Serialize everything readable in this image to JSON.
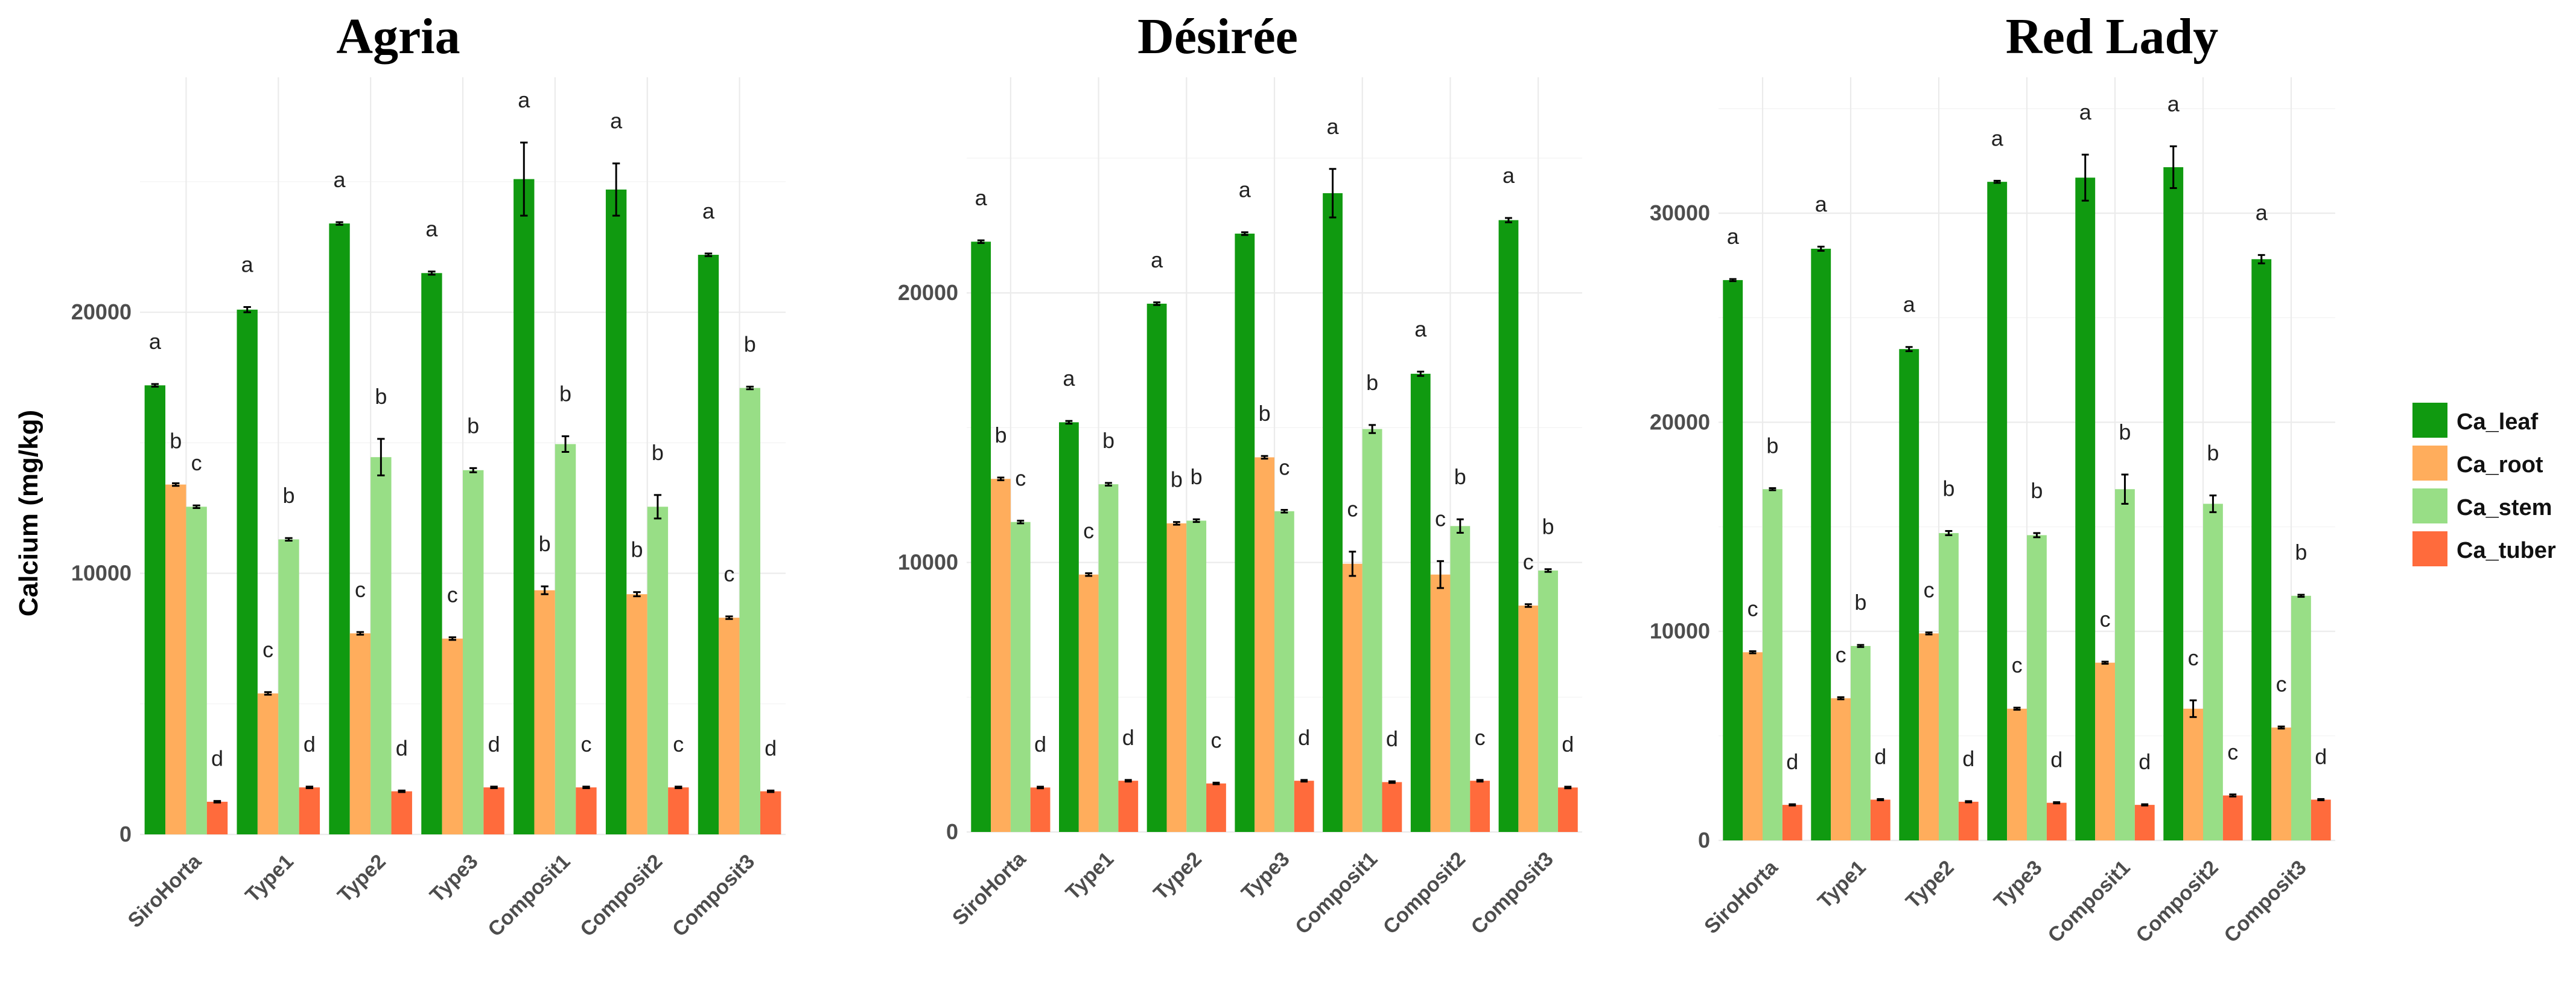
{
  "chart_data": [
    {
      "type": "bar",
      "title": "Agria",
      "ylabel": "Calcium (mg/kg)",
      "xlabel": "",
      "categories": [
        "SiroHorta",
        "Type1",
        "Type2",
        "Type3",
        "Composit1",
        "Composit2",
        "Composit3"
      ],
      "ylim": [
        0,
        29000
      ],
      "yticks": [
        0,
        10000,
        20000
      ],
      "series": [
        {
          "name": "Ca_leaf",
          "values": [
            17200,
            20100,
            23400,
            21500,
            25100,
            24700,
            22200
          ],
          "errors": [
            50,
            100,
            50,
            60,
            1400,
            1000,
            50
          ],
          "labels": [
            "a",
            "a",
            "a",
            "a",
            "a",
            "a",
            "a"
          ]
        },
        {
          "name": "Ca_root",
          "values": [
            13400,
            5400,
            7700,
            7500,
            9350,
            9200,
            8300
          ],
          "errors": [
            50,
            50,
            50,
            50,
            150,
            80,
            50
          ],
          "labels": [
            "b",
            "c",
            "c",
            "c",
            "b",
            "b",
            "c"
          ]
        },
        {
          "name": "Ca_stem",
          "values": [
            12550,
            11300,
            14450,
            13950,
            14950,
            12550,
            17100
          ],
          "errors": [
            50,
            50,
            700,
            80,
            300,
            450,
            50
          ],
          "labels": [
            "c",
            "b",
            "b",
            "b",
            "b",
            "b",
            "b"
          ]
        },
        {
          "name": "Ca_tuber",
          "values": [
            1250,
            1800,
            1650,
            1800,
            1800,
            1800,
            1650
          ],
          "errors": [
            30,
            30,
            30,
            30,
            30,
            30,
            30
          ],
          "labels": [
            "d",
            "d",
            "d",
            "d",
            "c",
            "c",
            "d"
          ]
        }
      ]
    },
    {
      "type": "bar",
      "title": "Désirée",
      "ylabel": "",
      "xlabel": "",
      "categories": [
        "SiroHorta",
        "Type1",
        "Type2",
        "Type3",
        "Composit1",
        "Composit2",
        "Composit3"
      ],
      "ylim": [
        0,
        28000
      ],
      "yticks": [
        0,
        10000,
        20000
      ],
      "series": [
        {
          "name": "Ca_leaf",
          "values": [
            21900,
            15200,
            19600,
            22200,
            23700,
            17000,
            22700
          ],
          "errors": [
            50,
            50,
            50,
            50,
            900,
            80,
            80
          ],
          "labels": [
            "a",
            "a",
            "a",
            "a",
            "a",
            "a",
            "a"
          ]
        },
        {
          "name": "Ca_root",
          "values": [
            13100,
            9550,
            11450,
            13900,
            9950,
            9550,
            8400
          ],
          "errors": [
            50,
            50,
            50,
            50,
            450,
            500,
            50
          ],
          "labels": [
            "b",
            "c",
            "b",
            "b",
            "c",
            "c",
            "c"
          ]
        },
        {
          "name": "Ca_stem",
          "values": [
            11500,
            12900,
            11550,
            11900,
            14950,
            11350,
            9700
          ],
          "errors": [
            50,
            50,
            50,
            50,
            150,
            250,
            50
          ],
          "labels": [
            "c",
            "b",
            "b",
            "c",
            "b",
            "b",
            "b"
          ]
        },
        {
          "name": "Ca_tuber",
          "values": [
            1650,
            1900,
            1800,
            1900,
            1850,
            1900,
            1650
          ],
          "errors": [
            30,
            30,
            30,
            30,
            30,
            30,
            30
          ],
          "labels": [
            "d",
            "d",
            "c",
            "d",
            "d",
            "c",
            "d"
          ]
        }
      ]
    },
    {
      "type": "bar",
      "title": "Red Lady",
      "ylabel": "",
      "xlabel": "",
      "categories": [
        "SiroHorta",
        "Type1",
        "Type2",
        "Type3",
        "Composit1",
        "Composit2",
        "Composit3"
      ],
      "ylim": [
        0,
        36500
      ],
      "yticks": [
        0,
        10000,
        20000,
        30000
      ],
      "series": [
        {
          "name": "Ca_leaf",
          "values": [
            26800,
            28300,
            23500,
            31500,
            31700,
            32200,
            27800
          ],
          "errors": [
            50,
            100,
            100,
            50,
            1100,
            1000,
            200
          ],
          "labels": [
            "a",
            "a",
            "a",
            "a",
            "a",
            "a",
            "a"
          ]
        },
        {
          "name": "Ca_root",
          "values": [
            9000,
            6800,
            9900,
            6300,
            8500,
            6300,
            5400
          ],
          "errors": [
            50,
            50,
            50,
            50,
            50,
            400,
            50
          ],
          "labels": [
            "c",
            "c",
            "c",
            "c",
            "c",
            "c",
            "c"
          ]
        },
        {
          "name": "Ca_stem",
          "values": [
            16800,
            9300,
            14700,
            14600,
            16800,
            16100,
            11700
          ],
          "errors": [
            50,
            50,
            100,
            100,
            700,
            400,
            50
          ],
          "labels": [
            "b",
            "b",
            "b",
            "b",
            "b",
            "b",
            "b"
          ]
        },
        {
          "name": "Ca_tuber",
          "values": [
            1700,
            1950,
            1850,
            1800,
            1700,
            2150,
            1950
          ],
          "errors": [
            30,
            30,
            30,
            30,
            30,
            50,
            30
          ],
          "labels": [
            "d",
            "d",
            "d",
            "d",
            "d",
            "c",
            "d"
          ]
        }
      ]
    }
  ],
  "legend": {
    "position": "right",
    "items": [
      {
        "name": "Ca_leaf",
        "color": "#109a10"
      },
      {
        "name": "Ca_root",
        "color": "#ffad5c"
      },
      {
        "name": "Ca_stem",
        "color": "#98de86"
      },
      {
        "name": "Ca_tuber",
        "color": "#ff6b3c"
      }
    ]
  }
}
